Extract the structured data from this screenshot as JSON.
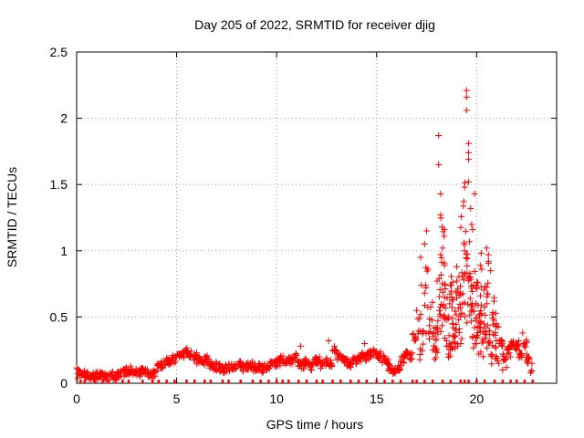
{
  "chart_data": {
    "type": "scatter",
    "title": "Day 205 of 2022, SRMTID for receiver djig",
    "xlabel": "GPS time / hours",
    "ylabel": "SRMTID / TECUs",
    "xlim": [
      0,
      24
    ],
    "ylim": [
      0,
      2.5
    ],
    "xticks": [
      0,
      5,
      10,
      15,
      20
    ],
    "yticks": [
      0,
      0.5,
      1,
      1.5,
      2,
      2.5
    ],
    "xtick_labels": [
      "0",
      "5",
      "10",
      "15",
      "20"
    ],
    "ytick_labels": [
      "0",
      "0.5",
      "1",
      "1.5",
      "2",
      "2.5"
    ],
    "grid": true,
    "marker": "plus",
    "marker_color": "#ff0000",
    "x_range_of_data": [
      0,
      22.8
    ],
    "series": [
      {
        "name": "SRMTID",
        "x": [
          0.1,
          0.3,
          0.5,
          0.7,
          0.9,
          1.1,
          1.3,
          1.5,
          1.7,
          1.9,
          2.1,
          2.3,
          2.5,
          2.7,
          2.9,
          3.1,
          3.3,
          3.5,
          3.7,
          3.9,
          4.1,
          4.3,
          4.5,
          4.7,
          4.9,
          5.1,
          5.3,
          5.5,
          5.7,
          5.9,
          6.1,
          6.3,
          6.5,
          6.7,
          6.9,
          7.1,
          7.3,
          7.5,
          7.7,
          7.9,
          8.1,
          8.3,
          8.5,
          8.7,
          8.9,
          9.1,
          9.3,
          9.5,
          9.7,
          9.9,
          10.1,
          10.3,
          10.5,
          10.7,
          10.9,
          11.1,
          11.3,
          11.5,
          11.7,
          11.9,
          12.1,
          12.3,
          12.5,
          12.7,
          12.9,
          13.1,
          13.3,
          13.5,
          13.7,
          13.9,
          14.1,
          14.3,
          14.5,
          14.7,
          14.9,
          15.1,
          15.3,
          15.5,
          15.7,
          15.9,
          16.1,
          16.3,
          16.5,
          16.7,
          16.9,
          17.1,
          17.3,
          17.5,
          17.7,
          17.9,
          18.0,
          18.1,
          18.2,
          18.3,
          18.4,
          18.5,
          18.6,
          18.7,
          18.8,
          18.9,
          19.0,
          19.1,
          19.2,
          19.3,
          19.4,
          19.5,
          19.6,
          19.7,
          19.8,
          19.9,
          20.0,
          20.1,
          20.2,
          20.3,
          20.4,
          20.5,
          20.6,
          20.7,
          20.8,
          20.9,
          21.0,
          21.2,
          21.4,
          21.6,
          21.8,
          22.0,
          22.2,
          22.4,
          22.6,
          22.8
        ],
        "y": [
          0.09,
          0.07,
          0.06,
          0.05,
          0.06,
          0.06,
          0.05,
          0.05,
          0.06,
          0.04,
          0.07,
          0.08,
          0.09,
          0.1,
          0.08,
          0.07,
          0.09,
          0.08,
          0.06,
          0.07,
          0.12,
          0.14,
          0.16,
          0.17,
          0.18,
          0.2,
          0.22,
          0.24,
          0.22,
          0.2,
          0.17,
          0.15,
          0.18,
          0.14,
          0.13,
          0.12,
          0.1,
          0.11,
          0.12,
          0.13,
          0.14,
          0.12,
          0.13,
          0.14,
          0.12,
          0.12,
          0.11,
          0.13,
          0.14,
          0.15,
          0.16,
          0.18,
          0.16,
          0.17,
          0.2,
          0.15,
          0.14,
          0.16,
          0.13,
          0.17,
          0.18,
          0.13,
          0.16,
          0.15,
          0.25,
          0.2,
          0.18,
          0.16,
          0.14,
          0.17,
          0.18,
          0.22,
          0.2,
          0.22,
          0.24,
          0.21,
          0.18,
          0.16,
          0.12,
          0.1,
          0.12,
          0.18,
          0.22,
          0.2,
          0.35,
          0.45,
          0.7,
          0.9,
          0.6,
          0.4,
          0.5,
          0.8,
          0.95,
          1.15,
          0.85,
          0.65,
          0.55,
          0.7,
          0.75,
          0.6,
          0.7,
          0.8,
          0.95,
          1.2,
          1.4,
          1.05,
          0.9,
          1.25,
          0.75,
          0.8,
          0.6,
          0.75,
          0.9,
          0.65,
          0.55,
          0.9,
          0.7,
          0.4,
          0.6,
          0.55,
          0.4,
          0.3,
          0.2,
          0.25,
          0.3,
          0.28,
          0.22,
          0.3,
          0.18,
          0.12
        ],
        "scatter_extra": [
          [
            0.05,
            0.04
          ],
          [
            1.0,
            0.03
          ],
          [
            4.5,
            0.19
          ],
          [
            6.0,
            0.23
          ],
          [
            8.5,
            0.15
          ],
          [
            11.2,
            0.28
          ],
          [
            12.6,
            0.32
          ],
          [
            14.4,
            0.3
          ],
          [
            17.0,
            0.55
          ],
          [
            17.2,
            0.95
          ],
          [
            17.4,
            1.05
          ],
          [
            17.5,
            1.15
          ],
          [
            17.6,
            0.38
          ],
          [
            17.8,
            0.25
          ],
          [
            17.9,
            0.18
          ],
          [
            18.1,
            1.87
          ],
          [
            18.1,
            1.65
          ],
          [
            18.2,
            1.43
          ],
          [
            18.2,
            1.27
          ],
          [
            18.3,
            1.02
          ],
          [
            18.4,
            0.5
          ],
          [
            18.5,
            0.32
          ],
          [
            18.6,
            0.22
          ],
          [
            18.7,
            0.28
          ],
          [
            18.8,
            0.45
          ],
          [
            18.9,
            0.35
          ],
          [
            19.0,
            0.88
          ],
          [
            19.1,
            0.48
          ],
          [
            19.2,
            0.3
          ],
          [
            19.3,
            0.6
          ],
          [
            19.4,
            1.0
          ],
          [
            19.5,
            2.21
          ],
          [
            19.5,
            2.16
          ],
          [
            19.5,
            2.06
          ],
          [
            19.6,
            1.81
          ],
          [
            19.6,
            1.74
          ],
          [
            19.6,
            1.69
          ],
          [
            19.6,
            1.52
          ],
          [
            19.7,
            1.32
          ],
          [
            19.8,
            1.16
          ],
          [
            19.9,
            1.43
          ],
          [
            19.9,
            0.42
          ],
          [
            20.0,
            0.3
          ],
          [
            20.1,
            0.22
          ],
          [
            20.2,
            0.45
          ],
          [
            20.5,
            1.02
          ],
          [
            20.6,
            0.92
          ],
          [
            20.7,
            0.85
          ],
          [
            21.1,
            0.15
          ],
          [
            21.3,
            0.1
          ],
          [
            21.5,
            0.12
          ],
          [
            21.7,
            0.2
          ],
          [
            22.1,
            0.32
          ],
          [
            22.3,
            0.38
          ],
          [
            22.5,
            0.22
          ],
          [
            22.7,
            0.08
          ]
        ],
        "zero_markers": [
          0.2,
          0.4,
          0.9,
          1.3,
          1.6,
          2.3,
          2.6,
          3.3,
          3.8,
          4.1,
          4.5,
          4.9,
          5.5,
          5.9,
          6.4,
          6.7,
          7.3,
          7.6,
          8.2,
          8.8,
          9.2,
          9.6,
          10.0,
          10.3,
          10.6,
          11.1,
          11.5,
          12.0,
          12.3,
          12.8,
          13.2,
          13.7,
          14.1,
          14.5,
          15.0,
          15.4,
          15.8,
          16.2,
          16.8,
          17.0,
          17.4,
          17.8,
          18.3,
          18.7,
          19.2,
          19.4,
          19.6,
          20.0,
          20.4,
          20.9,
          21.3,
          21.7,
          22.0,
          22.4,
          22.8
        ]
      }
    ]
  }
}
